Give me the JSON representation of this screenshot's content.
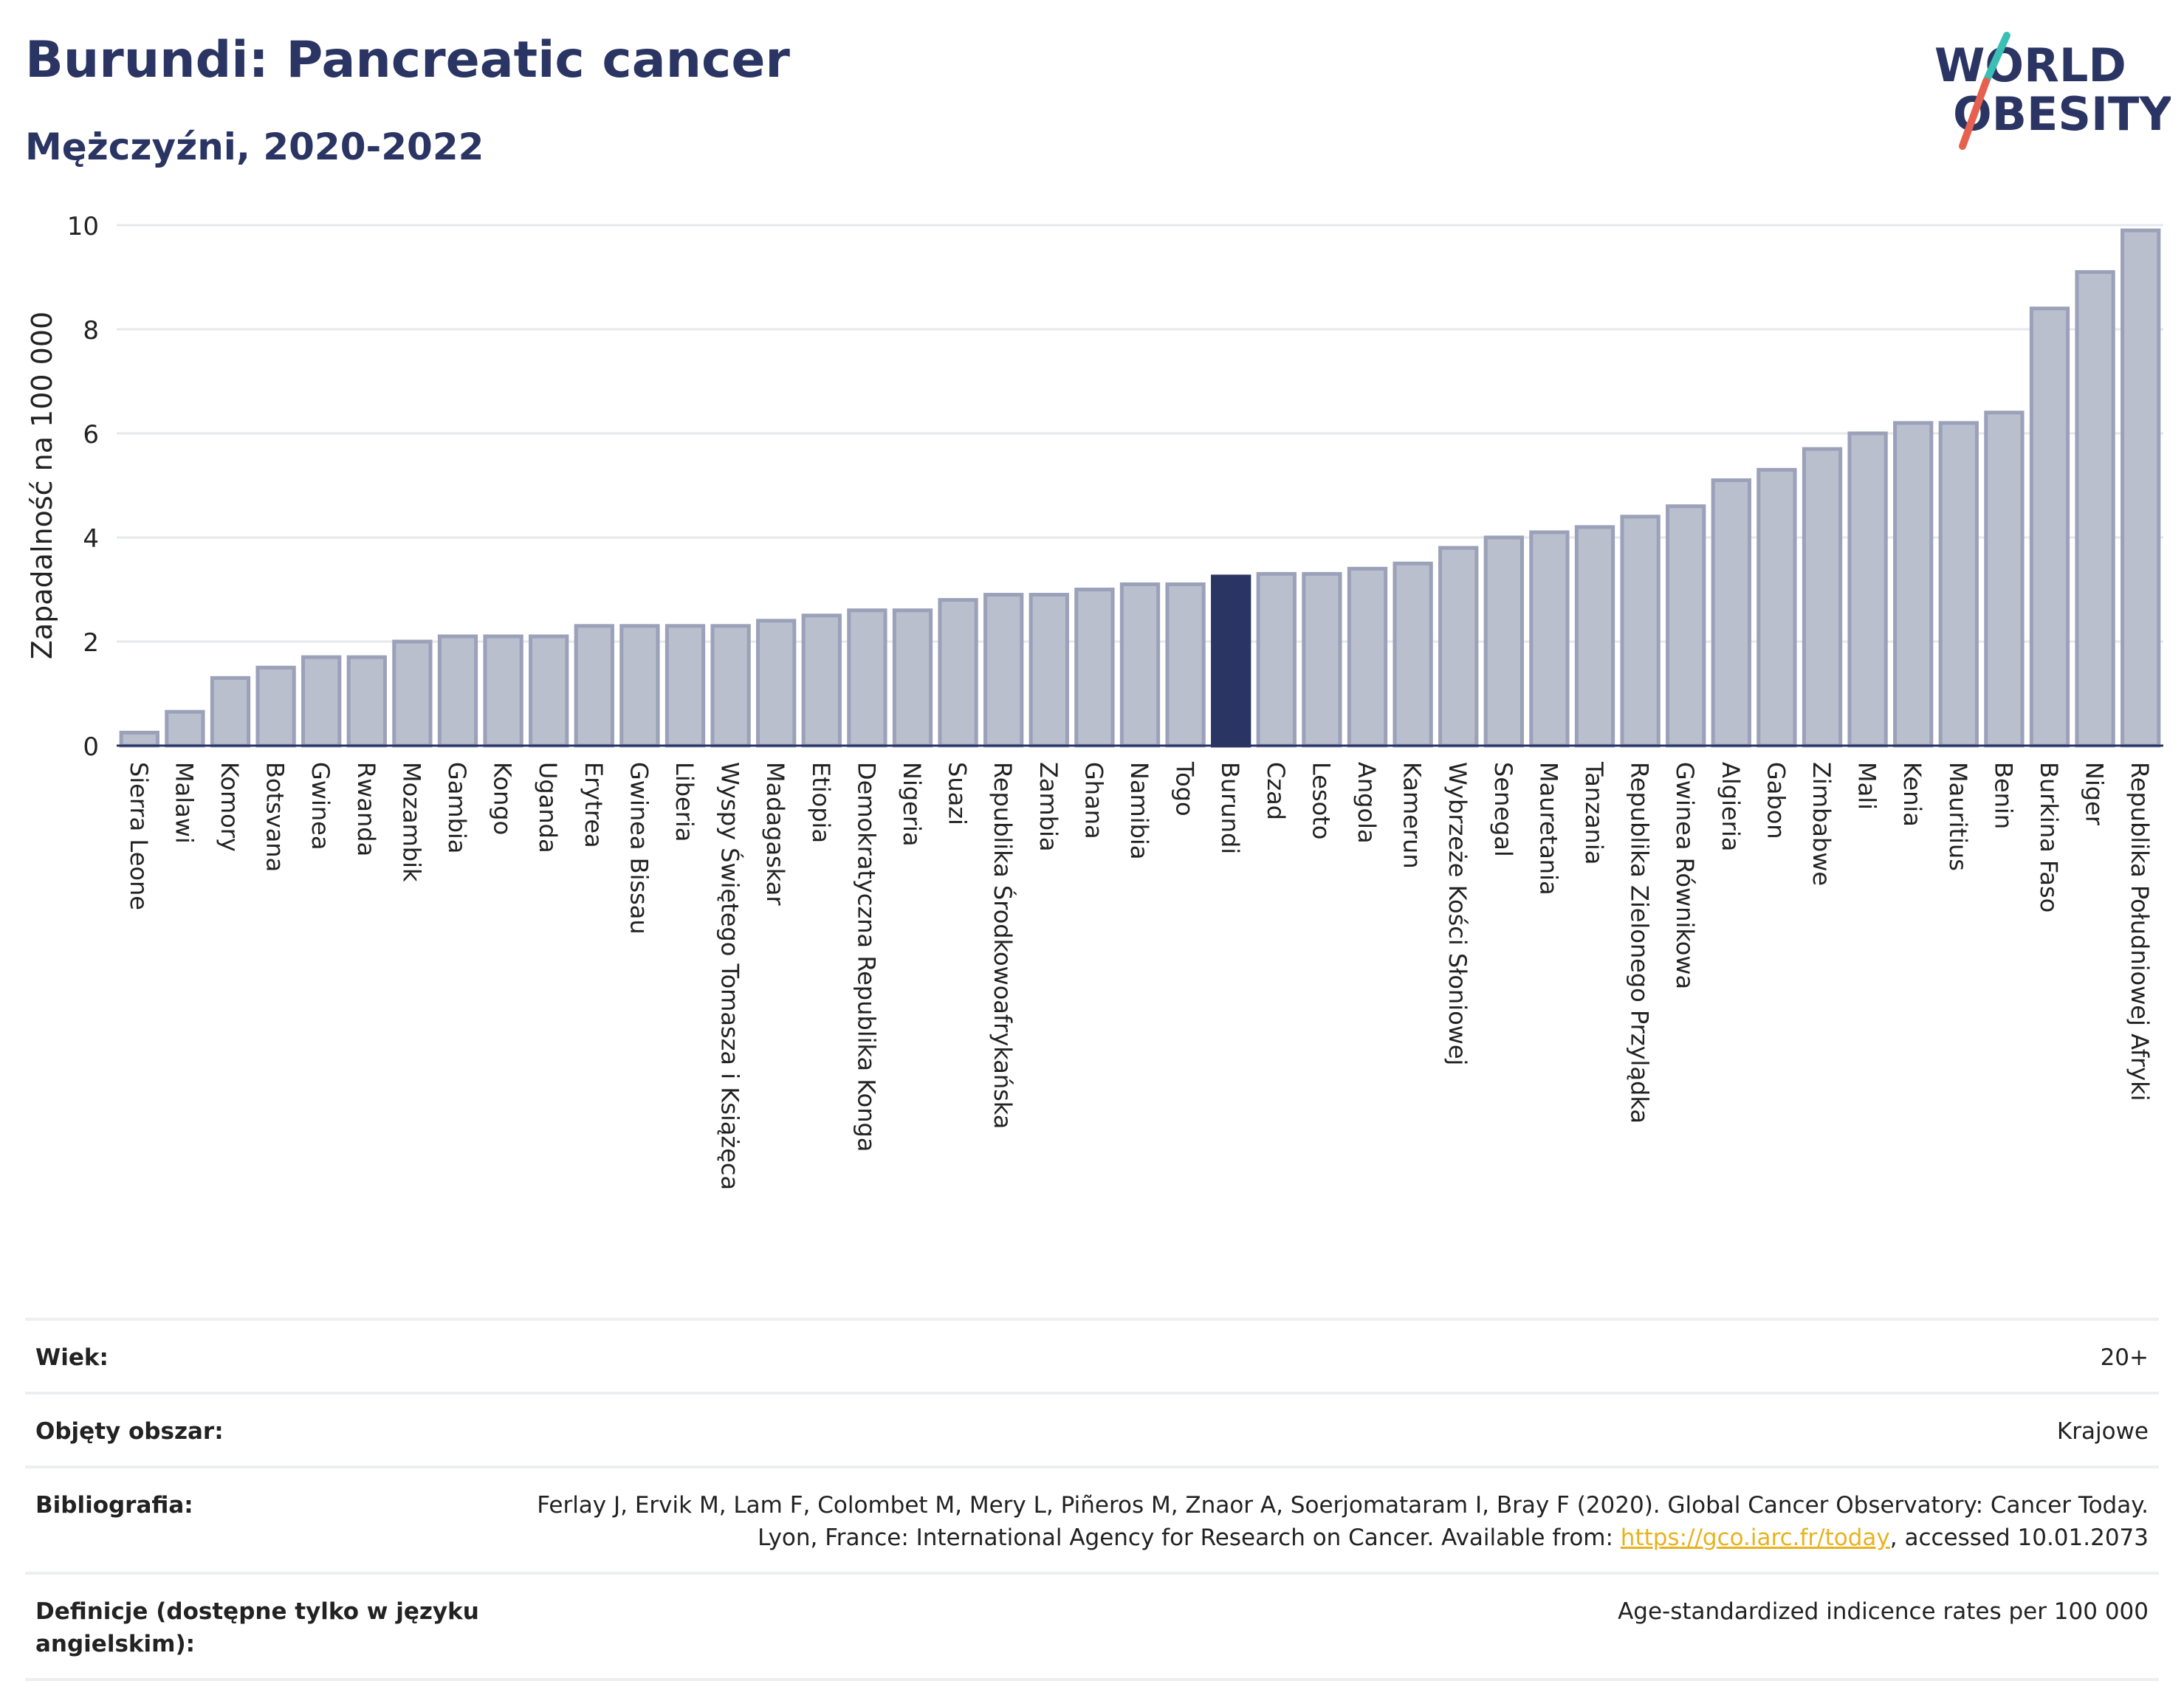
{
  "header": {
    "title": "Burundi: Pancreatic cancer",
    "subtitle": "Mężczyźni, 2020-2022"
  },
  "logo": {
    "line1": "WORLD",
    "line2": "OBESITY",
    "colors": {
      "text": "#2b3563",
      "slash_teal": "#3bbfb5",
      "slash_red": "#e5604f"
    }
  },
  "chart_data": {
    "type": "bar",
    "ylabel": "Zapadalność na 100 000",
    "xlabel": "",
    "ylim": [
      0,
      10
    ],
    "yticks": [
      0,
      2,
      4,
      6,
      8,
      10
    ],
    "grid": true,
    "highlight": "Burundi",
    "colors": {
      "bar": "#b9bfcd",
      "bar_border": "#9aa1b9",
      "highlight": "#2b3563"
    },
    "categories": [
      "Sierra Leone",
      "Malawi",
      "Komory",
      "Botsvana",
      "Gwinea",
      "Rwanda",
      "Mozambik",
      "Gambia",
      "Kongo",
      "Uganda",
      "Erytrea",
      "Gwinea Bissau",
      "Liberia",
      "Wyspy Świętego Tomasza i Książęca",
      "Madagaskar",
      "Etiopia",
      "Demokratyczna Republika Konga",
      "Nigeria",
      "Suazi",
      "Republika Środkowoafrykańska",
      "Zambia",
      "Ghana",
      "Namibia",
      "Togo",
      "Burundi",
      "Czad",
      "Lesoto",
      "Angola",
      "Kamerun",
      "Wybrzeże Kości Słoniowej",
      "Senegal",
      "Mauretania",
      "Tanzania",
      "Republika Zielonego Przylądka",
      "Gwinea Równikowa",
      "Algieria",
      "Gabon",
      "Zimbabwe",
      "Mali",
      "Kenia",
      "Mauritius",
      "Benin",
      "Burkina Faso",
      "Niger",
      "Republika Południowej Afryki"
    ],
    "values": [
      0.25,
      0.65,
      1.3,
      1.5,
      1.7,
      1.7,
      2.0,
      2.1,
      2.1,
      2.1,
      2.3,
      2.3,
      2.3,
      2.3,
      2.4,
      2.5,
      2.6,
      2.6,
      2.8,
      2.9,
      2.9,
      3.0,
      3.1,
      3.1,
      3.25,
      3.3,
      3.3,
      3.4,
      3.5,
      3.8,
      4.0,
      4.1,
      4.2,
      4.4,
      4.6,
      5.1,
      5.3,
      5.7,
      6.0,
      6.2,
      6.2,
      6.4,
      8.4,
      9.1,
      9.9
    ]
  },
  "meta": [
    {
      "label": "Wiek:",
      "value": "20+"
    },
    {
      "label": "Objęty obszar:",
      "value": "Krajowe"
    },
    {
      "label": "Bibliografia:",
      "value_before": "Ferlay J, Ervik M, Lam F, Colombet M, Mery L, Piñeros M, Znaor A, Soerjomataram I, Bray F (2020). Global Cancer Observatory: Cancer Today. Lyon, France: International Agency for Research on Cancer. Available from: ",
      "link": "https://gco.iarc.fr/today",
      "value_after": ", accessed 10.01.2073"
    },
    {
      "label": "Definicje (dostępne tylko w języku angielskim):",
      "value": "Age-standardized indicence rates per 100 000"
    }
  ]
}
